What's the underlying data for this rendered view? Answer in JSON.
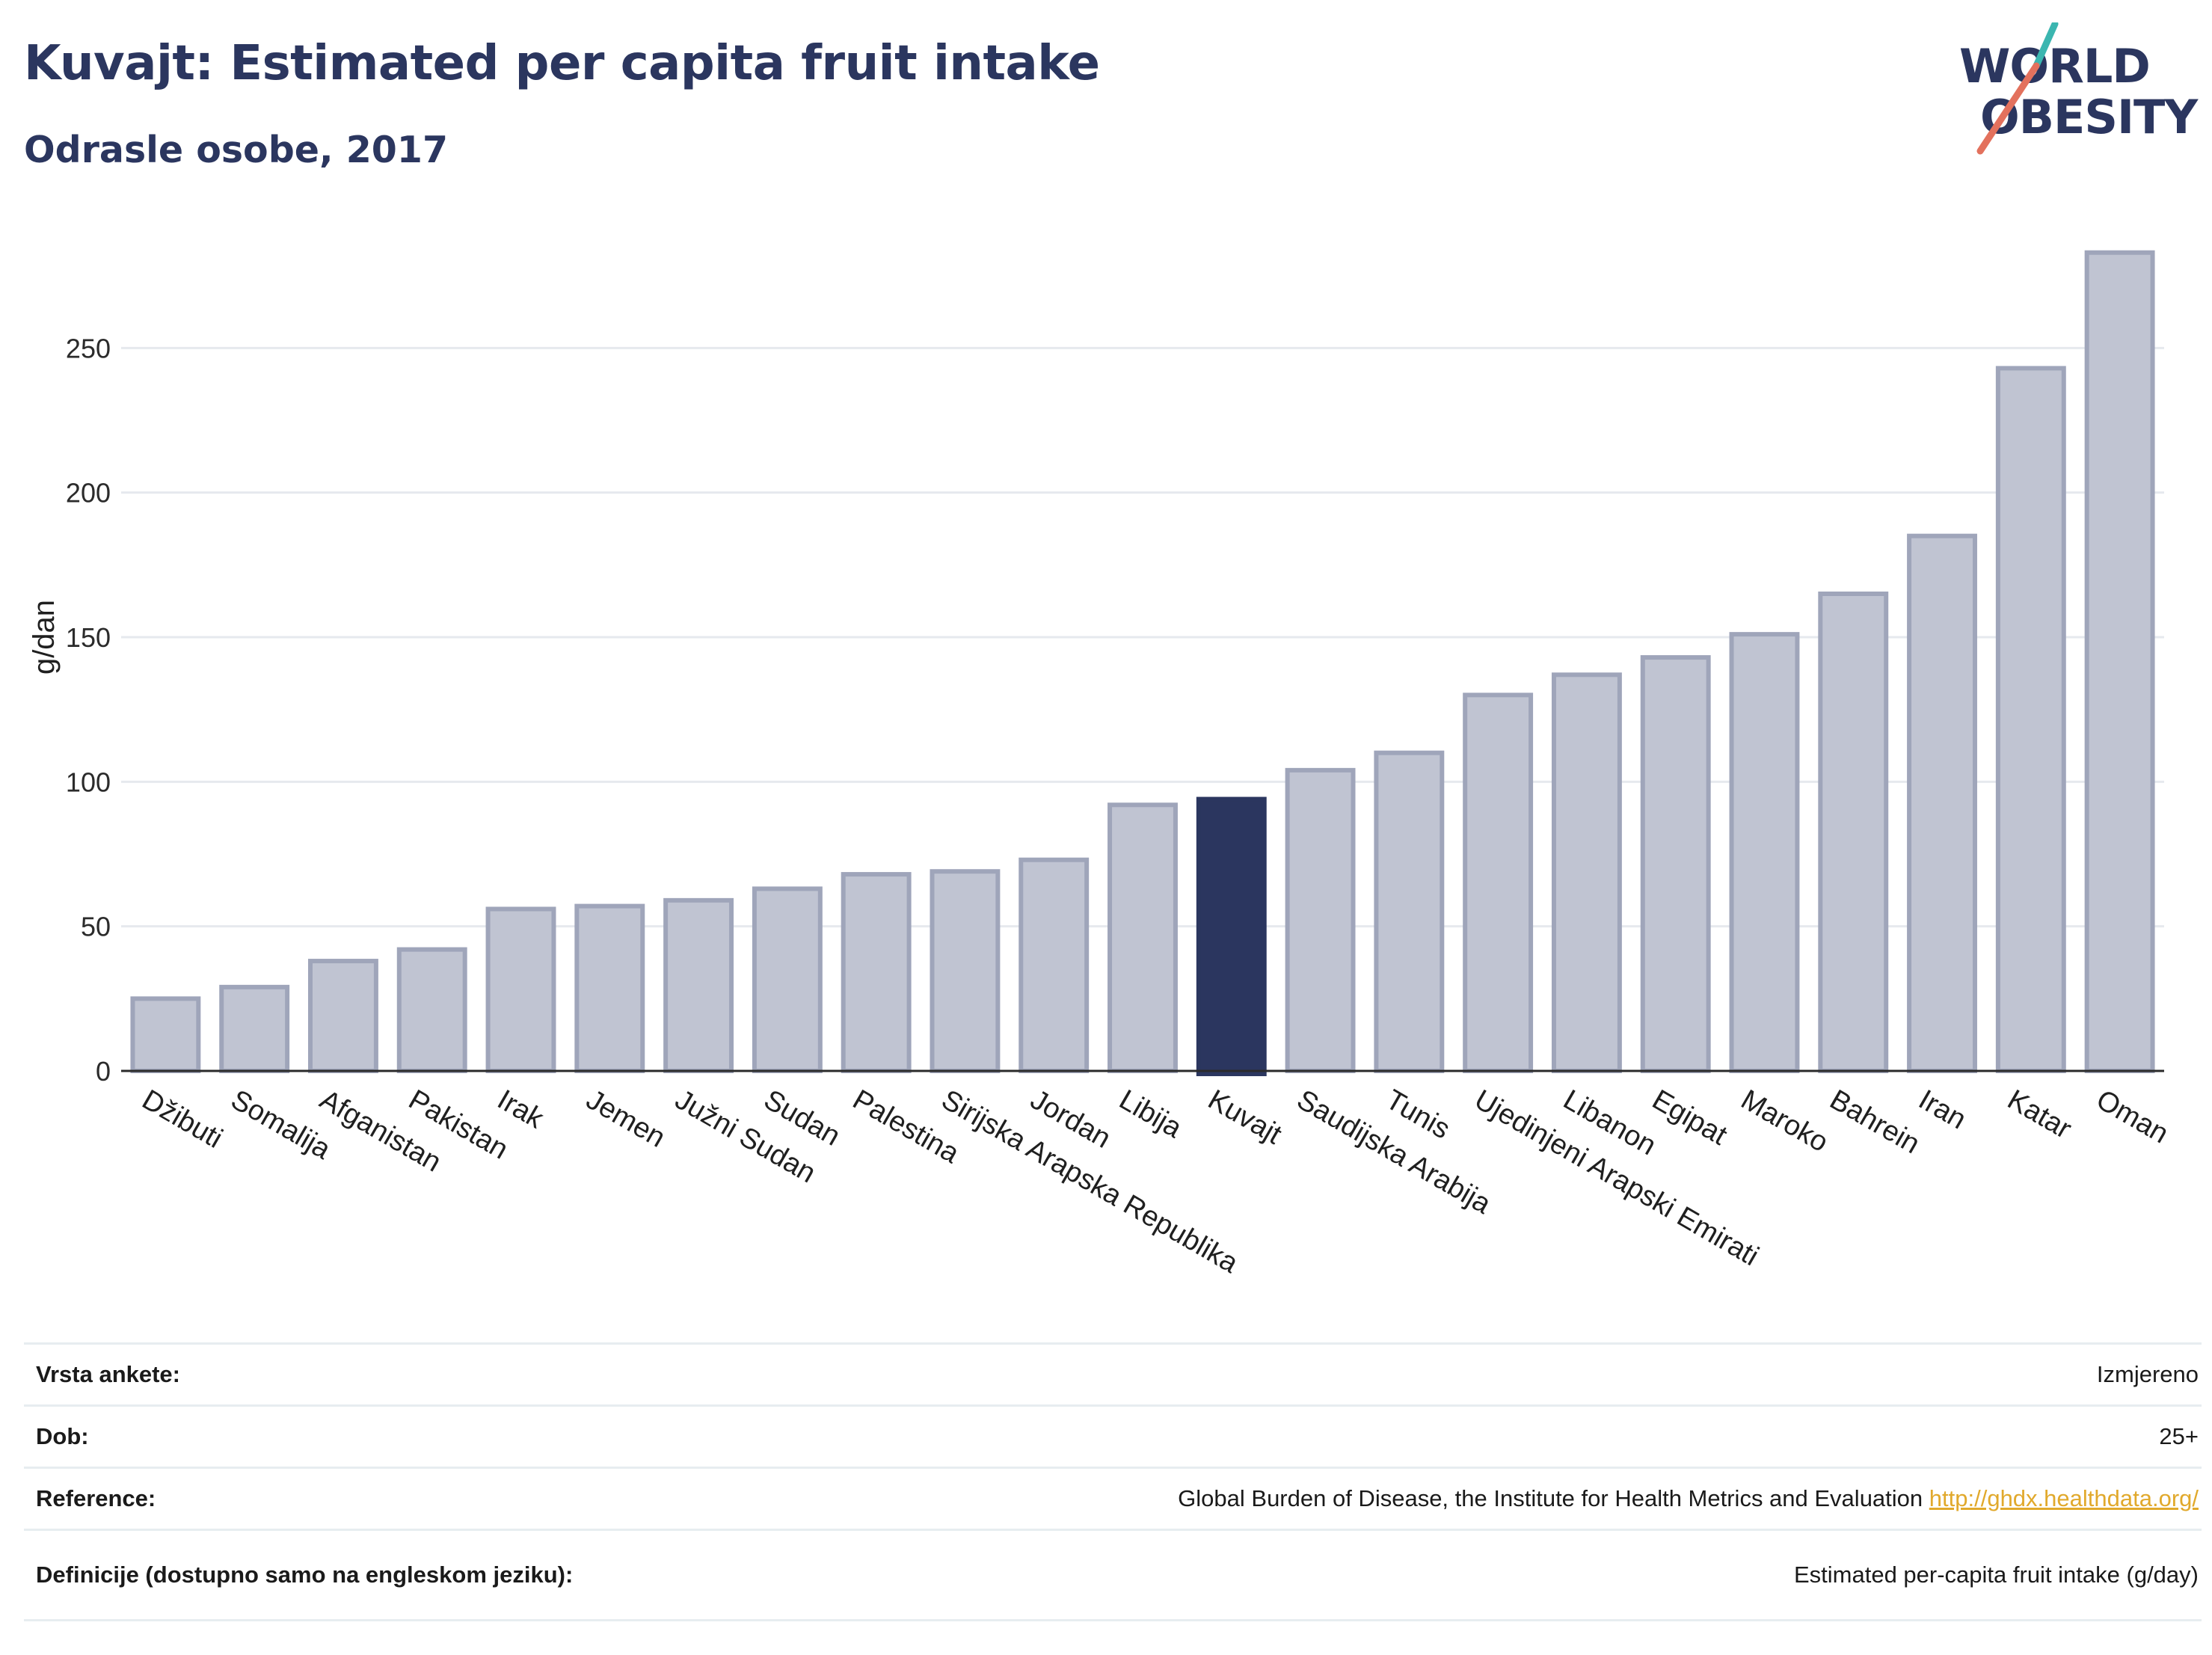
{
  "header": {
    "title": "Kuvajt: Estimated per capita fruit intake",
    "subtitle": "Odrasle osobe, 2017"
  },
  "logo": {
    "line1": "WORLD",
    "line2": "OBESITY",
    "colors": {
      "text": "#2b365f",
      "slash_top": "#3bb6b0",
      "slash_bottom": "#e3715d"
    }
  },
  "chart_data": {
    "type": "bar",
    "ylabel": "g/dan",
    "ylim": [
      0,
      285
    ],
    "yticks": [
      0,
      50,
      100,
      150,
      200,
      250
    ],
    "grid": true,
    "highlight": "Kuvajt",
    "colors": {
      "bar": "#c0c4d2",
      "bar_border": "#9fa5ba",
      "highlight": "#2b365f",
      "grid": "#e6e9ee",
      "axis": "#2b2b2b"
    },
    "categories": [
      "Džibuti",
      "Somalija",
      "Afganistan",
      "Pakistan",
      "Irak",
      "Jemen",
      "Južni Sudan",
      "Sudan",
      "Palestina",
      "Sirijska Arapska Republika",
      "Jordan",
      "Libija",
      "Kuvajt",
      "Saudijska Arabija",
      "Tunis",
      "Ujedinjeni Arapski Emirati",
      "Libanon",
      "Egipat",
      "Maroko",
      "Bahrein",
      "Iran",
      "Katar",
      "Oman"
    ],
    "values": [
      25,
      29,
      38,
      42,
      56,
      57,
      59,
      63,
      68,
      69,
      73,
      92,
      94,
      104,
      110,
      130,
      137,
      143,
      151,
      165,
      185,
      243,
      283
    ]
  },
  "info": [
    {
      "label": "Vrsta ankete:",
      "value": "Izmjereno"
    },
    {
      "label": "Dob:",
      "value": "25+"
    },
    {
      "label": "Reference:",
      "value": "Global Burden of Disease, the Institute for Health Metrics and Evaluation",
      "link": "http://ghdx.healthdata.org/"
    },
    {
      "label": "Definicije (dostupno samo na engleskom jeziku):",
      "value": "Estimated per-capita fruit intake (g/day)"
    }
  ]
}
